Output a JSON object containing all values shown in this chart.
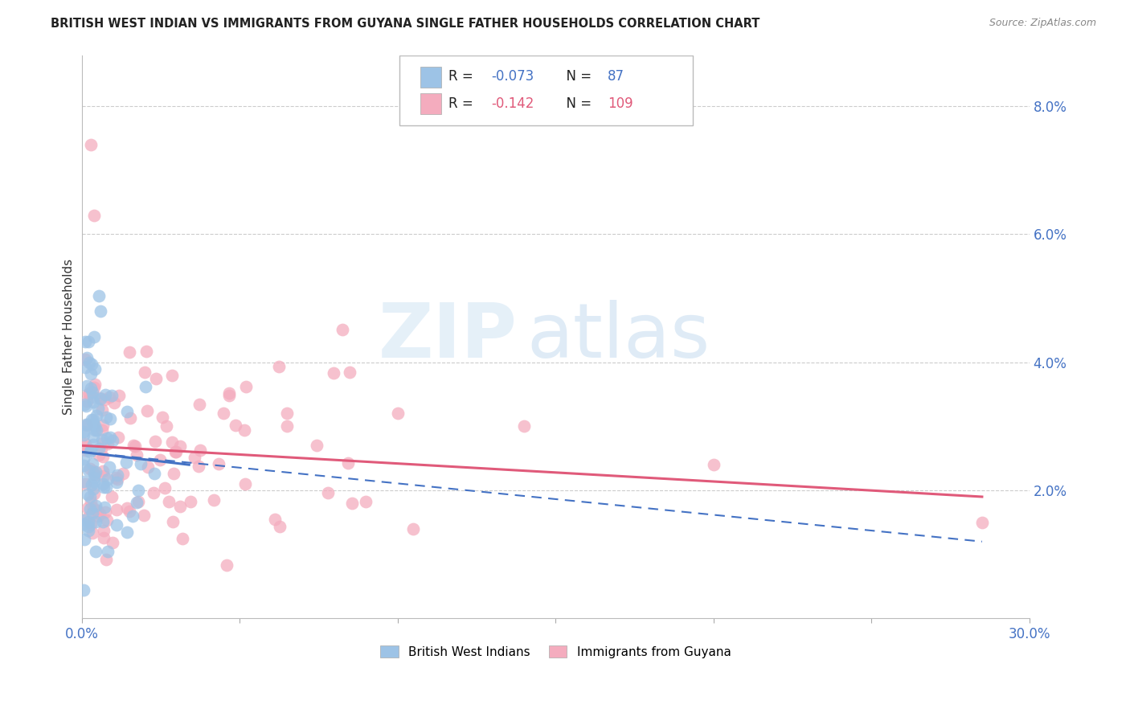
{
  "title": "BRITISH WEST INDIAN VS IMMIGRANTS FROM GUYANA SINGLE FATHER HOUSEHOLDS CORRELATION CHART",
  "source": "Source: ZipAtlas.com",
  "ylabel": "Single Father Households",
  "yaxis_labels": [
    "8.0%",
    "6.0%",
    "4.0%",
    "2.0%"
  ],
  "yaxis_values": [
    0.08,
    0.06,
    0.04,
    0.02
  ],
  "xlim": [
    0.0,
    0.3
  ],
  "ylim": [
    0.0,
    0.088
  ],
  "watermark_zip": "ZIP",
  "watermark_atlas": "atlas",
  "legend1_label": "British West Indians",
  "legend2_label": "Immigrants from Guyana",
  "r1": -0.073,
  "n1": 87,
  "r2": -0.142,
  "n2": 109,
  "color_blue": "#9DC3E6",
  "color_pink": "#F4ACBE",
  "color_line_blue": "#4472C4",
  "color_line_pink": "#E05A7A",
  "color_axis": "#4472C4",
  "background_color": "#FFFFFF",
  "grid_color": "#CCCCCC"
}
